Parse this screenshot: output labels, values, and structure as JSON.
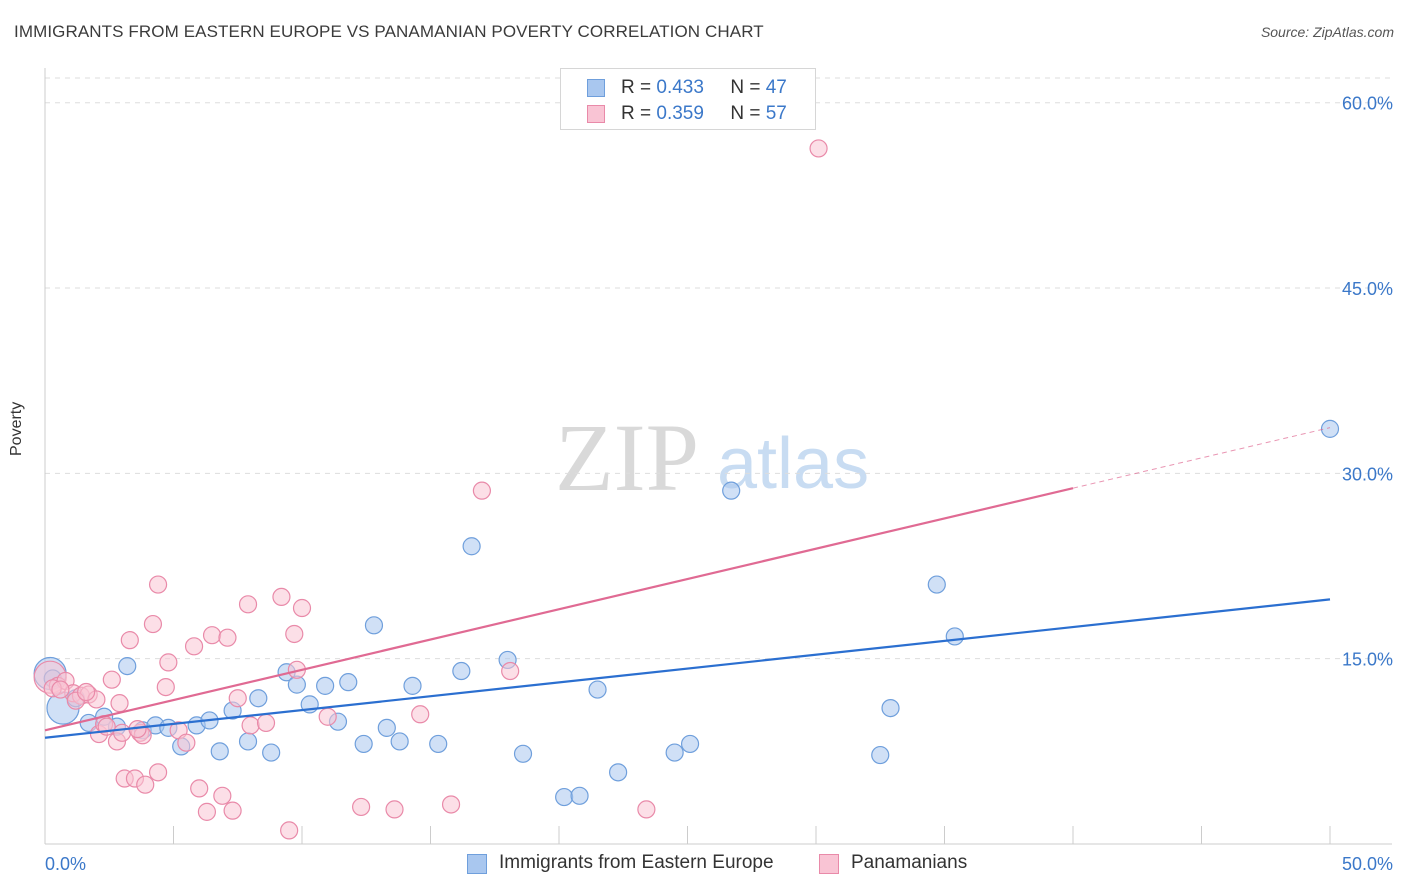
{
  "title": "IMMIGRANTS FROM EASTERN EUROPE VS PANAMANIAN POVERTY CORRELATION CHART",
  "source": "Source: ZipAtlas.com",
  "watermark": {
    "zip": "ZIP",
    "atlas": "atlas"
  },
  "legend_top": [
    {
      "r_label": "R =",
      "r_value": "0.433",
      "n_label": "N =",
      "n_value": "47",
      "color": "#a9c7ef",
      "border": "#6f9fdc"
    },
    {
      "r_label": "R =",
      "r_value": "0.359",
      "n_label": "N =",
      "n_value": "57",
      "color": "#f9c4d4",
      "border": "#e98aa9"
    }
  ],
  "legend_bottom": [
    {
      "label": "Immigrants from Eastern Europe",
      "color": "#a9c7ef",
      "border": "#6f9fdc"
    },
    {
      "label": "Panamanians",
      "color": "#f9c4d4",
      "border": "#e98aa9"
    }
  ],
  "chart_data": {
    "type": "scatter",
    "xlabel": "",
    "ylabel": "Poverty",
    "xlim": [
      0,
      50
    ],
    "ylim": [
      0,
      62
    ],
    "x_tick_labels": [
      "0.0%",
      "50.0%"
    ],
    "y_ticks": [
      15,
      30,
      45,
      60
    ],
    "y_tick_labels": [
      "15.0%",
      "30.0%",
      "45.0%",
      "60.0%"
    ],
    "grid": true,
    "series": [
      {
        "name": "Immigrants from Eastern Europe",
        "color": "#6f9fdc",
        "fill": "#a9c7ef",
        "trend_color": "#2b6fd0",
        "trend": {
          "x0": 0,
          "y0": 8.6,
          "x1": 50,
          "y1": 19.8,
          "solid_until": 50
        },
        "points": [
          [
            0.2,
            13.8,
            1
          ],
          [
            0.7,
            11.0,
            1
          ],
          [
            1.2,
            11.8,
            0
          ],
          [
            1.7,
            9.8,
            0
          ],
          [
            2.3,
            10.3,
            0
          ],
          [
            2.8,
            9.5,
            0
          ],
          [
            3.2,
            14.4,
            0
          ],
          [
            3.8,
            9.2,
            0
          ],
          [
            4.3,
            9.6,
            0
          ],
          [
            4.8,
            9.4,
            0
          ],
          [
            5.3,
            7.9,
            0
          ],
          [
            5.9,
            9.6,
            0
          ],
          [
            6.4,
            10.0,
            0
          ],
          [
            6.8,
            7.5,
            0
          ],
          [
            7.3,
            10.8,
            0
          ],
          [
            7.9,
            8.3,
            0
          ],
          [
            8.3,
            11.8,
            0
          ],
          [
            8.8,
            7.4,
            0
          ],
          [
            9.4,
            13.9,
            0
          ],
          [
            9.8,
            12.9,
            0
          ],
          [
            10.3,
            11.3,
            0
          ],
          [
            10.9,
            12.8,
            0
          ],
          [
            11.4,
            9.9,
            0
          ],
          [
            11.8,
            13.1,
            0
          ],
          [
            12.4,
            8.1,
            0
          ],
          [
            12.8,
            17.7,
            0
          ],
          [
            13.3,
            9.4,
            0
          ],
          [
            13.8,
            8.3,
            0
          ],
          [
            14.3,
            12.8,
            0
          ],
          [
            15.3,
            8.1,
            0
          ],
          [
            16.2,
            14.0,
            0
          ],
          [
            16.6,
            24.1,
            0
          ],
          [
            18.0,
            14.9,
            0
          ],
          [
            18.6,
            7.3,
            0
          ],
          [
            20.2,
            3.8,
            0
          ],
          [
            20.8,
            3.9,
            0
          ],
          [
            21.5,
            12.5,
            0
          ],
          [
            22.3,
            5.8,
            0
          ],
          [
            24.5,
            7.4,
            0
          ],
          [
            25.1,
            8.1,
            0
          ],
          [
            26.7,
            28.6,
            0
          ],
          [
            32.5,
            7.2,
            0
          ],
          [
            32.9,
            11.0,
            0
          ],
          [
            34.7,
            21.0,
            0
          ],
          [
            35.4,
            16.8,
            0
          ],
          [
            50.0,
            33.6,
            0
          ],
          [
            0.3,
            13.4,
            0
          ]
        ]
      },
      {
        "name": "Panamanians",
        "color": "#e98aa9",
        "fill": "#f9c4d4",
        "trend_color": "#e06a93",
        "trend": {
          "x0": 0,
          "y0": 9.2,
          "x1": 50,
          "y1": 33.7,
          "solid_until": 40
        },
        "points": [
          [
            0.2,
            13.5,
            1
          ],
          [
            0.5,
            12.8,
            0
          ],
          [
            0.8,
            13.2,
            0
          ],
          [
            1.1,
            12.2,
            0
          ],
          [
            1.4,
            12.0,
            0
          ],
          [
            1.7,
            12.1,
            0
          ],
          [
            2.0,
            11.7,
            0
          ],
          [
            2.1,
            8.9,
            0
          ],
          [
            2.3,
            9.7,
            0
          ],
          [
            2.6,
            13.3,
            0
          ],
          [
            2.9,
            11.4,
            0
          ],
          [
            2.8,
            8.3,
            0
          ],
          [
            3.0,
            9.0,
            0
          ],
          [
            3.1,
            5.3,
            0
          ],
          [
            3.3,
            16.5,
            0
          ],
          [
            3.5,
            5.3,
            0
          ],
          [
            3.7,
            9.0,
            0
          ],
          [
            3.8,
            8.8,
            0
          ],
          [
            3.9,
            4.8,
            0
          ],
          [
            4.2,
            17.8,
            0
          ],
          [
            4.4,
            5.8,
            0
          ],
          [
            4.4,
            21.0,
            0
          ],
          [
            4.7,
            12.7,
            0
          ],
          [
            4.8,
            14.7,
            0
          ],
          [
            5.2,
            9.2,
            0
          ],
          [
            5.5,
            8.2,
            0
          ],
          [
            5.8,
            16.0,
            0
          ],
          [
            6.0,
            4.5,
            0
          ],
          [
            6.3,
            2.6,
            0
          ],
          [
            6.5,
            16.9,
            0
          ],
          [
            6.9,
            3.9,
            0
          ],
          [
            7.1,
            16.7,
            0
          ],
          [
            7.3,
            2.7,
            0
          ],
          [
            7.5,
            11.8,
            0
          ],
          [
            7.9,
            19.4,
            0
          ],
          [
            8.0,
            9.6,
            0
          ],
          [
            8.6,
            9.8,
            0
          ],
          [
            9.2,
            20.0,
            0
          ],
          [
            9.5,
            1.1,
            0
          ],
          [
            9.7,
            17.0,
            0
          ],
          [
            9.8,
            14.1,
            0
          ],
          [
            10.0,
            19.1,
            0
          ],
          [
            11.0,
            10.3,
            0
          ],
          [
            12.3,
            3.0,
            0
          ],
          [
            13.6,
            2.8,
            0
          ],
          [
            14.6,
            10.5,
            0
          ],
          [
            15.8,
            3.2,
            0
          ],
          [
            17.0,
            28.6,
            0
          ],
          [
            18.1,
            14.0,
            0
          ],
          [
            23.4,
            2.8,
            0
          ],
          [
            30.1,
            56.3,
            0
          ],
          [
            0.3,
            12.6,
            0
          ],
          [
            0.6,
            12.5,
            0
          ],
          [
            1.2,
            11.6,
            0
          ],
          [
            2.4,
            9.5,
            0
          ],
          [
            3.6,
            9.3,
            0
          ],
          [
            1.6,
            12.3,
            0
          ]
        ]
      }
    ]
  }
}
